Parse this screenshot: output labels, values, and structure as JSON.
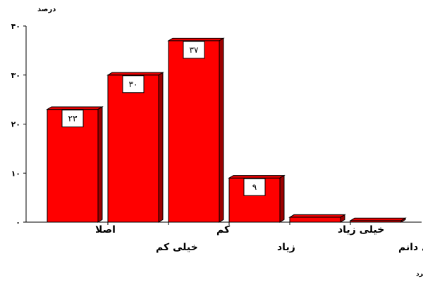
{
  "chart_data": {
    "type": "bar",
    "ylabel": "درصد",
    "xlabel": "میزان عملکرد",
    "ylim": [
      0,
      40
    ],
    "y_ticks": [
      "۰",
      "۱۰",
      "۲۰",
      "۳۰",
      "۴۰"
    ],
    "y_tick_values": [
      0,
      10,
      20,
      30,
      40
    ],
    "categories": [
      "اصلا",
      "خیلی کم",
      "کم",
      "زیاد",
      "خیلی زیاد",
      "نمی دانم"
    ],
    "values": [
      23,
      30,
      37,
      9,
      1,
      0.3
    ],
    "data_labels": [
      "۲۳",
      "۳۰",
      "۳۷",
      "۹",
      "",
      ""
    ],
    "grid": false,
    "legend": "none",
    "bar_style": "3d",
    "colors": {
      "bar_front": "#ff0000",
      "bar_side": "#9c0000",
      "bar_top": "#e60000",
      "bar_outline": "#000000",
      "axis": "#000000",
      "label_box_fill": "#ffffff",
      "label_box_stroke": "#000000"
    }
  }
}
